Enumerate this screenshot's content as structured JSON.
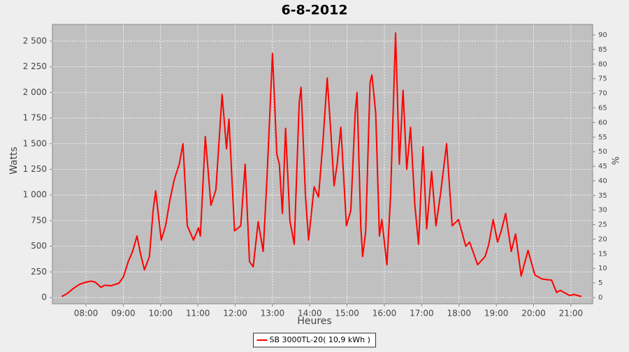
{
  "chart_data": {
    "type": "line",
    "title": "6-8-2012",
    "xlabel": "Heures",
    "ylabel": "Watts",
    "y2label": "%",
    "x": [
      "07:21",
      "07:30",
      "07:40",
      "07:50",
      "08:00",
      "08:08",
      "08:15",
      "08:24",
      "08:30",
      "08:40",
      "08:53",
      "09:00",
      "09:08",
      "09:15",
      "09:22",
      "09:28",
      "09:34",
      "09:42",
      "09:48",
      "09:52",
      "10:01",
      "10:08",
      "10:15",
      "10:22",
      "10:30",
      "10:36",
      "10:43",
      "10:53",
      "11:01",
      "11:04",
      "11:12",
      "11:21",
      "11:29",
      "11:39",
      "11:46",
      "11:50",
      "11:59",
      "12:09",
      "12:16",
      "12:23",
      "12:29",
      "12:37",
      "12:45",
      "12:51",
      "13:00",
      "13:07",
      "13:11",
      "13:16",
      "13:21",
      "13:28",
      "13:35",
      "13:43",
      "13:46",
      "13:53",
      "13:58",
      "14:07",
      "14:14",
      "14:21",
      "14:28",
      "14:34",
      "14:39",
      "14:44",
      "14:50",
      "14:59",
      "15:06",
      "15:13",
      "15:16",
      "15:22",
      "15:25",
      "15:30",
      "15:37",
      "15:40",
      "15:46",
      "15:52",
      "15:56",
      "16:04",
      "16:10",
      "16:18",
      "16:24",
      "16:30",
      "16:36",
      "16:42",
      "16:49",
      "16:55",
      "17:02",
      "17:08",
      "17:16",
      "17:23",
      "17:30",
      "17:40",
      "17:49",
      "17:59",
      "18:11",
      "18:17",
      "18:30",
      "18:42",
      "18:48",
      "18:55",
      "19:02",
      "19:08",
      "19:15",
      "19:24",
      "19:31",
      "19:40",
      "19:51",
      "20:02",
      "20:14",
      "20:29",
      "20:37",
      "20:43",
      "20:58",
      "21:05",
      "21:17"
    ],
    "series": [
      {
        "name": "SB 3000TL-20( 10,9 kWh )",
        "color": "#ff0000",
        "values": [
          10,
          40,
          90,
          130,
          150,
          160,
          150,
          100,
          120,
          115,
          140,
          200,
          350,
          450,
          600,
          420,
          270,
          400,
          850,
          1040,
          560,
          700,
          950,
          1150,
          1300,
          1500,
          700,
          560,
          680,
          600,
          1570,
          900,
          1050,
          1980,
          1450,
          1740,
          650,
          700,
          1300,
          350,
          300,
          740,
          450,
          1150,
          2380,
          1400,
          1300,
          820,
          1650,
          750,
          520,
          1900,
          2050,
          1000,
          560,
          1080,
          980,
          1500,
          2140,
          1600,
          1090,
          1300,
          1660,
          700,
          850,
          1800,
          2000,
          700,
          400,
          650,
          2100,
          2170,
          1800,
          600,
          760,
          320,
          1000,
          2580,
          1300,
          2020,
          1250,
          1660,
          900,
          520,
          1470,
          670,
          1230,
          700,
          1000,
          1500,
          700,
          760,
          500,
          540,
          320,
          400,
          520,
          760,
          540,
          650,
          820,
          450,
          620,
          210,
          460,
          220,
          180,
          170,
          50,
          70,
          20,
          30,
          10
        ]
      }
    ],
    "xlim": [
      "07:06",
      "21:35"
    ],
    "xticks": [
      "08:00",
      "09:00",
      "10:00",
      "11:00",
      "12:00",
      "13:00",
      "14:00",
      "15:00",
      "16:00",
      "17:00",
      "18:00",
      "19:00",
      "20:00",
      "21:00"
    ],
    "ylim": [
      -61,
      2663
    ],
    "yticks": [
      0,
      250,
      500,
      750,
      {
        "value": 1000,
        "label": "1 000"
      },
      {
        "value": 1250,
        "label": "1 250"
      },
      {
        "value": 1500,
        "label": "1 500"
      },
      {
        "value": 1750,
        "label": "1 750"
      },
      {
        "value": 2000,
        "label": "2 000"
      },
      {
        "value": 2250,
        "label": "2 250"
      },
      {
        "value": 2500,
        "label": "2 500"
      }
    ],
    "y2lim": [
      -2.15,
      93.6
    ],
    "y2ticks": [
      0,
      5,
      10,
      15,
      20,
      25,
      30,
      35,
      40,
      45,
      50,
      55,
      60,
      65,
      70,
      75,
      80,
      85,
      90
    ],
    "grid": true,
    "legend": "bottom"
  }
}
